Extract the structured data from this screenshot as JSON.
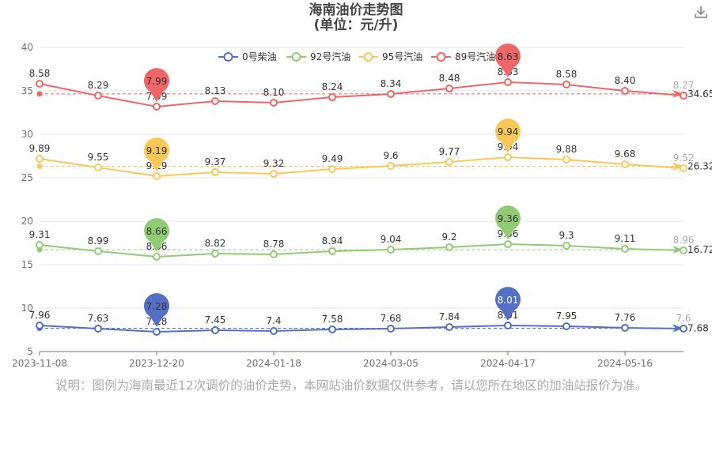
{
  "chart_data": {
    "type": "line",
    "title": "海南油价走势图",
    "subtitle": "(单位：元/升)",
    "x": [
      "2023-11-08",
      "",
      "2023-12-20",
      "",
      "2024-01-18",
      "",
      "2024-03-05",
      "",
      "2024-04-17",
      "",
      "2024-05-16",
      ""
    ],
    "xtick_labels": [
      "2023-11-08",
      "2023-12-20",
      "2024-01-18",
      "2024-03-05",
      "2024-04-17",
      "2024-05-16"
    ],
    "ylim": [
      5,
      40
    ],
    "yticks": [
      5,
      10,
      15,
      20,
      25,
      30,
      35,
      40
    ],
    "grid": true,
    "legend_position": "top-center",
    "series": [
      {
        "name": "0号柴油",
        "color": "#5470c6",
        "plot_values": [
          8,
          7.64,
          7.27,
          7.45,
          7.36,
          7.55,
          7.64,
          7.82,
          8,
          7.91,
          7.73,
          7.64
        ],
        "labels": [
          "7.96",
          "7.63",
          "7.28",
          "7.45",
          "7.4",
          "7.58",
          "7.68",
          "7.84",
          "8.01",
          "7.95",
          "7.76",
          "7.6"
        ],
        "min_index": 2,
        "max_index": 8,
        "average_line": 7.68,
        "average_label": "7.68"
      },
      {
        "name": "92号汽油",
        "color": "#91cc75",
        "plot_values": [
          17.27,
          16.55,
          15.91,
          16.27,
          16.18,
          16.55,
          16.73,
          17,
          17.36,
          17.18,
          16.82,
          16.64
        ],
        "labels": [
          "9.31",
          "8.99",
          "8.66",
          "8.82",
          "8.78",
          "8.94",
          "9.04",
          "9.2",
          "9.36",
          "9.3",
          "9.11",
          "8.96"
        ],
        "min_index": 2,
        "max_index": 8,
        "average_line": 16.72,
        "average_label": "16.72"
      },
      {
        "name": "95号汽油",
        "color": "#fac858",
        "plot_values": [
          27.18,
          26.18,
          25.18,
          25.64,
          25.45,
          26,
          26.36,
          26.82,
          27.36,
          27.09,
          26.55,
          26.09
        ],
        "labels": [
          "9.89",
          "9.55",
          "9.19",
          "9.37",
          "9.32",
          "9.49",
          "9.6",
          "9.77",
          "9.94",
          "9.88",
          "9.68",
          "9.52"
        ],
        "min_index": 2,
        "max_index": 8,
        "average_line": 26.32,
        "average_label": "26.32"
      },
      {
        "name": "89号汽油",
        "color": "#ee6666",
        "plot_values": [
          35.82,
          34.45,
          33.18,
          33.82,
          33.64,
          34.27,
          34.64,
          35.27,
          36,
          35.73,
          35,
          34.45
        ],
        "labels": [
          "8.58",
          "8.29",
          "7.99",
          "8.13",
          "8.10",
          "8.24",
          "8.34",
          "8.48",
          "8.63",
          "8.58",
          "8.40",
          "8.27"
        ],
        "min_index": 2,
        "max_index": 8,
        "average_line": 34.65,
        "average_label": "34.65"
      }
    ]
  },
  "note": "说明：图例为海南最近12次调价的油价走势，本网站油价数据仅供参考，请以您所在地区的加油站报价为准。",
  "toolbox": {
    "icon": "download-icon"
  }
}
